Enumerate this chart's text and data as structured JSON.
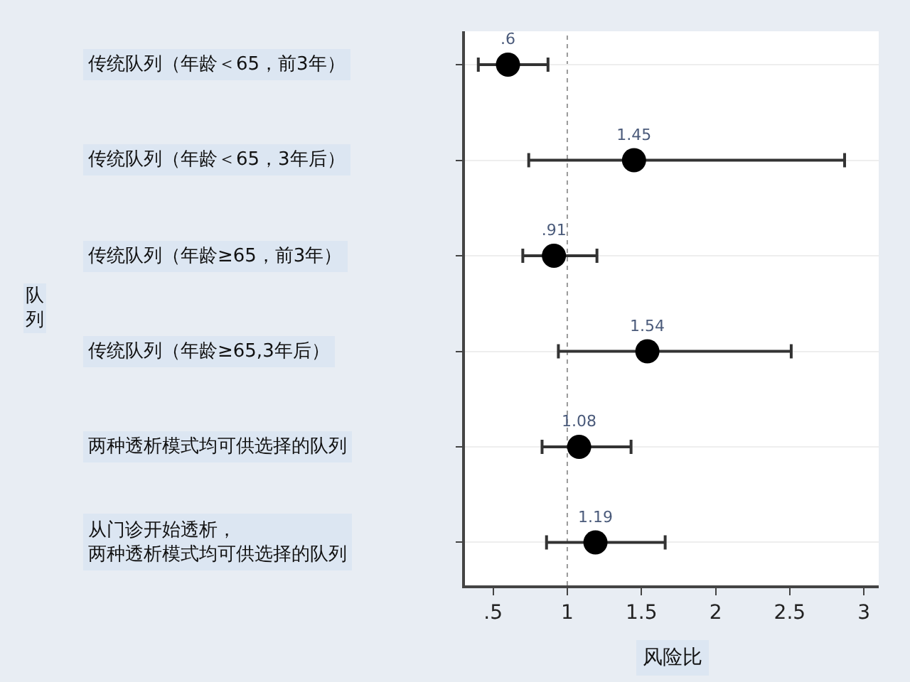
{
  "chart_data": {
    "type": "scatter",
    "orientation": "horizontal",
    "xlabel": "风险比",
    "ylabel": "队列",
    "categories": [
      "传统队列（年龄＜65，前3年）",
      "传统队列（年龄＜65，3年后）",
      "传统队列（年龄≥65，前3年）",
      "传统队列（年龄≥65,3年后）",
      "两种透析模式均可供选择的队列",
      "从门诊开始透析，两种透析模式均可供选择的队列"
    ],
    "values": [
      0.6,
      1.45,
      0.91,
      1.54,
      1.08,
      1.19
    ],
    "errors": [
      [
        0.4,
        0.87
      ],
      [
        0.74,
        2.87
      ],
      [
        0.7,
        1.2
      ],
      [
        0.94,
        2.51
      ],
      [
        0.83,
        1.43
      ],
      [
        0.86,
        1.66
      ]
    ],
    "value_labels": [
      ".6",
      "1.45",
      ".91",
      "1.54",
      "1.08",
      "1.19"
    ],
    "color": "#000000",
    "xlim": [
      0.31,
      3.1
    ],
    "xticks": [
      {
        "value": 0.5,
        "label": ".5"
      },
      1,
      1.5,
      2,
      2.5,
      3
    ],
    "ref_lines": [
      {
        "axis": "x",
        "value": 1,
        "color": "#999999",
        "line_style": "dotted"
      }
    ],
    "grid": "y",
    "marker": "circle",
    "legend": false
  }
}
